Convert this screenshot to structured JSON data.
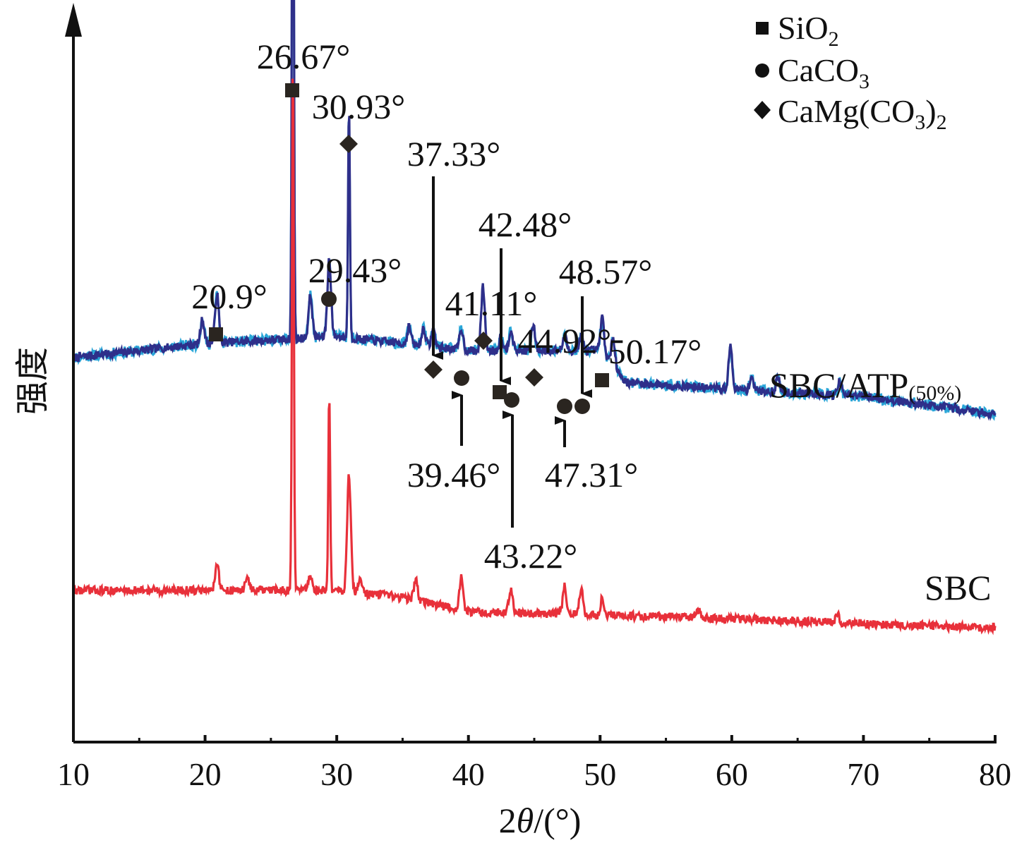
{
  "chart_data": {
    "type": "line",
    "title": "",
    "xlabel": "2θ/(°)",
    "ylabel": "强度",
    "xlim": [
      10,
      80
    ],
    "x_ticks": [
      "10",
      "20",
      "30",
      "40",
      "50",
      "60",
      "70",
      "80"
    ],
    "y_ticks_shown": false,
    "legend": {
      "position": "top-right",
      "entries": [
        {
          "marker": "square",
          "label": "SiO₂"
        },
        {
          "marker": "circle",
          "label": "CaCO₃"
        },
        {
          "marker": "diamond",
          "label": "CaMg(CO₃)₂"
        }
      ]
    },
    "series": [
      {
        "name": "SBC/ATP(50%)",
        "color": "#2e2f8a",
        "overlay_color": "#29a6d8",
        "baseline": [
          [
            10,
            0.545
          ],
          [
            20,
            0.565
          ],
          [
            30,
            0.575
          ],
          [
            40,
            0.555
          ],
          [
            50,
            0.555
          ],
          [
            52,
            0.51
          ],
          [
            60,
            0.5
          ],
          [
            70,
            0.49
          ],
          [
            80,
            0.465
          ]
        ],
        "peaks": [
          {
            "x": 19.8,
            "h": 0.035
          },
          {
            "x": 20.9,
            "h": 0.07
          },
          {
            "x": 26.67,
            "h": 0.98
          },
          {
            "x": 28.0,
            "h": 0.06
          },
          {
            "x": 29.43,
            "h": 0.11
          },
          {
            "x": 30.93,
            "h": 0.33
          },
          {
            "x": 35.5,
            "h": 0.025
          },
          {
            "x": 36.6,
            "h": 0.025
          },
          {
            "x": 37.33,
            "h": 0.025
          },
          {
            "x": 39.46,
            "h": 0.03
          },
          {
            "x": 41.11,
            "h": 0.09
          },
          {
            "x": 42.48,
            "h": 0.02
          },
          {
            "x": 43.22,
            "h": 0.03
          },
          {
            "x": 44.92,
            "h": 0.035
          },
          {
            "x": 47.31,
            "h": 0.02
          },
          {
            "x": 48.57,
            "h": 0.02
          },
          {
            "x": 50.17,
            "h": 0.05
          },
          {
            "x": 51.0,
            "h": 0.04
          },
          {
            "x": 59.9,
            "h": 0.06
          },
          {
            "x": 61.5,
            "h": 0.02
          },
          {
            "x": 63.5,
            "h": 0.02
          },
          {
            "x": 68.2,
            "h": 0.02
          }
        ]
      },
      {
        "name": "SBC",
        "color": "#e8303a",
        "baseline": [
          [
            10,
            0.215
          ],
          [
            20,
            0.215
          ],
          [
            30,
            0.215
          ],
          [
            35,
            0.205
          ],
          [
            40,
            0.185
          ],
          [
            50,
            0.18
          ],
          [
            60,
            0.175
          ],
          [
            70,
            0.168
          ],
          [
            80,
            0.162
          ]
        ],
        "peaks": [
          {
            "x": 20.9,
            "h": 0.04
          },
          {
            "x": 23.2,
            "h": 0.02
          },
          {
            "x": 26.67,
            "h": 0.76
          },
          {
            "x": 28.0,
            "h": 0.02
          },
          {
            "x": 29.43,
            "h": 0.28
          },
          {
            "x": 30.93,
            "h": 0.165
          },
          {
            "x": 31.8,
            "h": 0.02
          },
          {
            "x": 36.0,
            "h": 0.03
          },
          {
            "x": 39.46,
            "h": 0.045
          },
          {
            "x": 43.22,
            "h": 0.035
          },
          {
            "x": 47.31,
            "h": 0.04
          },
          {
            "x": 48.57,
            "h": 0.035
          },
          {
            "x": 50.17,
            "h": 0.025
          },
          {
            "x": 57.5,
            "h": 0.01
          },
          {
            "x": 68.0,
            "h": 0.012
          }
        ]
      }
    ],
    "annotations": [
      {
        "label": "20.9°",
        "x": 20.9,
        "marker": "square"
      },
      {
        "label": "26.67°",
        "x": 26.67,
        "marker": "square"
      },
      {
        "label": "29.43°",
        "x": 29.43,
        "marker": "circle"
      },
      {
        "label": "30.93°",
        "x": 30.93,
        "marker": "diamond"
      },
      {
        "label": "37.33°",
        "x": 37.33,
        "marker": "diamond",
        "arrow": "down"
      },
      {
        "label": "39.46°",
        "x": 39.46,
        "marker": "circle",
        "arrow": "up"
      },
      {
        "label": "41.11°",
        "x": 41.11,
        "marker": "diamond"
      },
      {
        "label": "42.48°",
        "x": 42.48,
        "marker": "square",
        "arrow": "down"
      },
      {
        "label": "43.22°",
        "x": 43.22,
        "marker": "circle",
        "arrow": "up"
      },
      {
        "label": "44.92°",
        "x": 44.92,
        "marker": "diamond"
      },
      {
        "label": "47.31°",
        "x": 47.31,
        "marker": "circle",
        "arrow": "up"
      },
      {
        "label": "48.57°",
        "x": 48.57,
        "marker": "circle",
        "arrow": "down"
      },
      {
        "label": "50.17°",
        "x": 50.17,
        "marker": "square"
      }
    ]
  }
}
